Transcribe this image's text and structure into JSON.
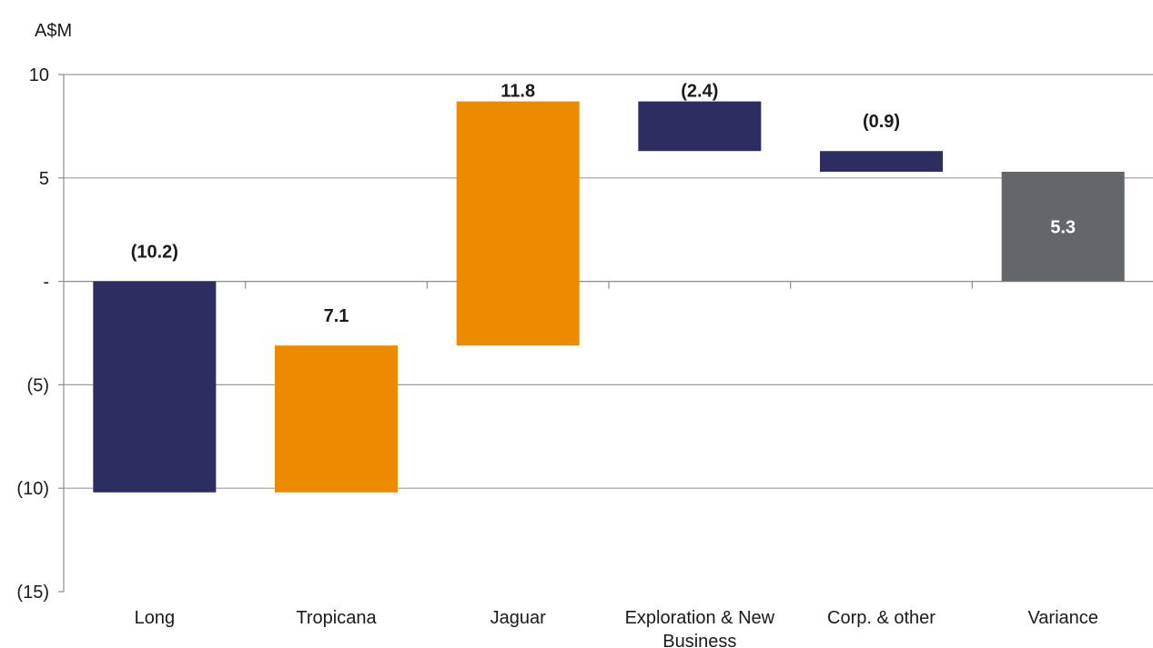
{
  "chart_data": {
    "type": "bar",
    "subtype": "waterfall",
    "unit_label": "A$M",
    "categories": [
      "Long",
      "Tropicana",
      "Jaguar",
      "Exploration & New Business",
      "Corp. & other",
      "Variance"
    ],
    "bars": [
      {
        "category": "Long",
        "start": 0,
        "end": -10.2,
        "label": "(10.2)",
        "kind": "negative"
      },
      {
        "category": "Tropicana",
        "start": -10.2,
        "end": -3.1,
        "label": "7.1",
        "kind": "positive"
      },
      {
        "category": "Jaguar",
        "start": -3.1,
        "end": 8.7,
        "label": "11.8",
        "kind": "positive"
      },
      {
        "category": "Exploration & New Business",
        "start": 8.7,
        "end": 6.3,
        "label": "(2.4)",
        "kind": "negative"
      },
      {
        "category": "Corp. & other",
        "start": 6.3,
        "end": 5.3,
        "label": "(0.9)",
        "kind": "negative"
      },
      {
        "category": "Variance",
        "start": 0,
        "end": 5.3,
        "label": "5.3",
        "kind": "total"
      }
    ],
    "y_ticks": [
      {
        "value": 10,
        "label": "10"
      },
      {
        "value": 5,
        "label": "5"
      },
      {
        "value": 0,
        "label": "-"
      },
      {
        "value": -5,
        "label": "(5)"
      },
      {
        "value": -10,
        "label": "(10)"
      },
      {
        "value": -15,
        "label": "(15)"
      }
    ],
    "ylim": [
      -15,
      10
    ],
    "grid": true,
    "colors": {
      "negative": "#2e2d62",
      "positive": "#ec8b00",
      "total": "#63666a",
      "gridline": "#9b9b9b",
      "axis": "#8c8c8c"
    }
  }
}
